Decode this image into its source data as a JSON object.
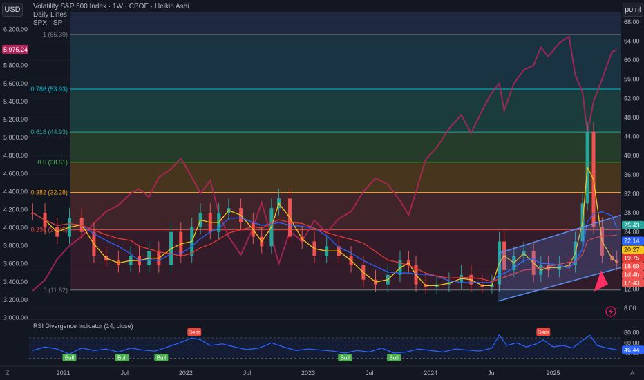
{
  "toolbar": {
    "currency_label": "USD",
    "scale_label": "point"
  },
  "header": {
    "title": "Volatility S&P 500 Index · 1W · CBOE · Heikin Ashi",
    "indicator_1": "Daily Lines",
    "indicator_2": "SPX · SP"
  },
  "colors": {
    "background": "#131722",
    "spx_line": "#b4265c",
    "bull_candle": "#26a69a",
    "bear_candle": "#ef5350",
    "ma_fast": "#f5c518",
    "ma_mid": "#2962ff",
    "ma_slow": "#e53935",
    "rsi_line": "#2962ff",
    "channel": "#5b8def",
    "fib_top": "#2a2e39",
    "fib_1": "#1c4e5a",
    "fib_2": "#1f5b52",
    "fib_3": "#2c5a31",
    "fib_4": "#6b4a1a",
    "fib_5": "#5a2e2e",
    "fib_6": "#4a2130"
  },
  "chart_data": [
    {
      "type": "line",
      "name": "main",
      "x_ticks": [
        "2021",
        "Jul",
        "2022",
        "Jul",
        "2023",
        "Jul",
        "2024",
        "Jul",
        "2025"
      ],
      "left_axis": {
        "ticks": [
          "6,200.00",
          "6,000.00",
          "5,800.00",
          "5,600.00",
          "5,400.00",
          "5,200.00",
          "5,000.00",
          "4,800.00",
          "4,600.00",
          "4,400.00",
          "4,200.00",
          "4,000.00",
          "3,800.00",
          "3,600.00",
          "3,400.00",
          "3,200.00",
          "3,000.00"
        ],
        "current_label": "5,975.24",
        "range": [
          3000,
          6250
        ]
      },
      "right_axis": {
        "ticks": [
          "68.00",
          "64.00",
          "60.00",
          "56.00",
          "52.00",
          "48.00",
          "44.00",
          "40.00",
          "36.00",
          "32.00",
          "28.00",
          "24.00",
          "20.00",
          "16.00",
          "12.00",
          "8.00"
        ],
        "range": [
          6,
          70
        ]
      },
      "price_badges": [
        {
          "label": "25.43",
          "value": 25.43,
          "color": "#26a69a"
        },
        {
          "label": "22.14",
          "value": 22.14,
          "color": "#2962ff"
        },
        {
          "label": "20.27",
          "value": 20.27,
          "color": "#f5c518"
        },
        {
          "label": "19.75",
          "value": 19.75,
          "color": "#e53935"
        },
        {
          "label": "18.69",
          "value": 18.69,
          "color": "#ef5350"
        },
        {
          "label": "1d 4h",
          "value": 17.9,
          "color": "#ef5350"
        },
        {
          "label": "17.43",
          "value": 17.43,
          "color": "#ef5350"
        }
      ],
      "fib_levels": [
        {
          "label": "1 (65.39)",
          "value": 65.39,
          "color": "#787b86"
        },
        {
          "label": "0.786 (53.93)",
          "value": 53.93,
          "color": "#00bcd4"
        },
        {
          "label": "0.618 (44.93)",
          "value": 44.93,
          "color": "#26a69a"
        },
        {
          "label": "0.5 (38.61)",
          "value": 38.61,
          "color": "#4caf50"
        },
        {
          "label": "0.382 (32.28)",
          "value": 32.28,
          "color": "#ff9800"
        },
        {
          "label": "0.236 (24.45)",
          "value": 24.45,
          "color": "#f44336"
        },
        {
          "label": "0 (11.82)",
          "value": 11.82,
          "color": "#787b86"
        }
      ],
      "spx_series": [
        [
          2020.75,
          3300
        ],
        [
          2020.85,
          3420
        ],
        [
          2020.95,
          3650
        ],
        [
          2021.05,
          3800
        ],
        [
          2021.15,
          3900
        ],
        [
          2021.25,
          4050
        ],
        [
          2021.35,
          4180
        ],
        [
          2021.45,
          4250
        ],
        [
          2021.55,
          4380
        ],
        [
          2021.62,
          4430
        ],
        [
          2021.7,
          4340
        ],
        [
          2021.78,
          4560
        ],
        [
          2021.88,
          4650
        ],
        [
          2021.96,
          4770
        ],
        [
          2022.05,
          4560
        ],
        [
          2022.12,
          4380
        ],
        [
          2022.2,
          4520
        ],
        [
          2022.27,
          4160
        ],
        [
          2022.35,
          3900
        ],
        [
          2022.45,
          3700
        ],
        [
          2022.55,
          4000
        ],
        [
          2022.62,
          4280
        ],
        [
          2022.7,
          3900
        ],
        [
          2022.76,
          3600
        ],
        [
          2022.85,
          3960
        ],
        [
          2022.95,
          3850
        ],
        [
          2023.05,
          4080
        ],
        [
          2023.15,
          3950
        ],
        [
          2023.25,
          4100
        ],
        [
          2023.35,
          4180
        ],
        [
          2023.45,
          4400
        ],
        [
          2023.55,
          4550
        ],
        [
          2023.65,
          4480
        ],
        [
          2023.75,
          4300
        ],
        [
          2023.82,
          4140
        ],
        [
          2023.88,
          4400
        ],
        [
          2023.96,
          4760
        ],
        [
          2024.05,
          4890
        ],
        [
          2024.15,
          5100
        ],
        [
          2024.25,
          5250
        ],
        [
          2024.33,
          5050
        ],
        [
          2024.42,
          5300
        ],
        [
          2024.5,
          5500
        ],
        [
          2024.56,
          5600
        ],
        [
          2024.6,
          5300
        ],
        [
          2024.68,
          5600
        ],
        [
          2024.76,
          5750
        ],
        [
          2024.84,
          5800
        ],
        [
          2024.9,
          6000
        ],
        [
          2024.96,
          5900
        ],
        [
          2025.05,
          6050
        ],
        [
          2025.13,
          6120
        ],
        [
          2025.18,
          5700
        ],
        [
          2025.24,
          5500
        ],
        [
          2025.28,
          5050
        ],
        [
          2025.33,
          5400
        ],
        [
          2025.4,
          5650
        ],
        [
          2025.48,
          5950
        ],
        [
          2025.52,
          5975
        ]
      ],
      "vix_candles_close": [
        [
          2020.75,
          28
        ],
        [
          2020.85,
          25
        ],
        [
          2020.95,
          23
        ],
        [
          2021.05,
          27
        ],
        [
          2021.15,
          24
        ],
        [
          2021.25,
          19
        ],
        [
          2021.35,
          18
        ],
        [
          2021.45,
          17
        ],
        [
          2021.55,
          19
        ],
        [
          2021.62,
          17
        ],
        [
          2021.7,
          20
        ],
        [
          2021.78,
          17
        ],
        [
          2021.88,
          24
        ],
        [
          2021.96,
          19
        ],
        [
          2022.05,
          25
        ],
        [
          2022.12,
          28
        ],
        [
          2022.2,
          24
        ],
        [
          2022.27,
          28
        ],
        [
          2022.35,
          29
        ],
        [
          2022.45,
          26
        ],
        [
          2022.55,
          23
        ],
        [
          2022.62,
          21
        ],
        [
          2022.7,
          29
        ],
        [
          2022.76,
          31
        ],
        [
          2022.85,
          23
        ],
        [
          2022.95,
          22
        ],
        [
          2023.05,
          19
        ],
        [
          2023.15,
          21
        ],
        [
          2023.25,
          19
        ],
        [
          2023.35,
          17
        ],
        [
          2023.45,
          14
        ],
        [
          2023.55,
          13
        ],
        [
          2023.65,
          15
        ],
        [
          2023.75,
          18
        ],
        [
          2023.82,
          17
        ],
        [
          2023.88,
          13
        ],
        [
          2023.96,
          12.5
        ],
        [
          2024.05,
          13
        ],
        [
          2024.15,
          13.5
        ],
        [
          2024.25,
          15
        ],
        [
          2024.33,
          13
        ],
        [
          2024.42,
          12.5
        ],
        [
          2024.5,
          13
        ],
        [
          2024.56,
          22
        ],
        [
          2024.6,
          16
        ],
        [
          2024.68,
          19
        ],
        [
          2024.76,
          20
        ],
        [
          2024.84,
          15
        ],
        [
          2024.9,
          17
        ],
        [
          2024.96,
          16
        ],
        [
          2025.05,
          17
        ],
        [
          2025.13,
          17
        ],
        [
          2025.18,
          22
        ],
        [
          2025.24,
          30
        ],
        [
          2025.28,
          45
        ],
        [
          2025.33,
          25
        ],
        [
          2025.4,
          19
        ],
        [
          2025.48,
          18
        ],
        [
          2025.52,
          17.43
        ]
      ],
      "channel": {
        "lower": [
          [
            2024.55,
            9.5
          ],
          [
            2025.55,
            16.5
          ]
        ],
        "upper": [
          [
            2024.55,
            19.5
          ],
          [
            2025.55,
            27.5
          ]
        ]
      },
      "time_range": [
        2020.72,
        2025.55
      ]
    },
    {
      "type": "line",
      "name": "rsi",
      "title": "RSI Divergence Indicator (14, close)",
      "y_ticks": [
        "80.00",
        "60.00",
        "40.00"
      ],
      "current_label": "46.44",
      "range": [
        25,
        85
      ],
      "signals": [
        {
          "label": "Bull",
          "x": 2021.05,
          "kind": "bull"
        },
        {
          "label": "Bull",
          "x": 2021.48,
          "kind": "bull"
        },
        {
          "label": "Bull",
          "x": 2021.8,
          "kind": "bull"
        },
        {
          "label": "Bear",
          "x": 2022.07,
          "kind": "bear"
        },
        {
          "label": "Bull",
          "x": 2023.3,
          "kind": "bull"
        },
        {
          "label": "Bull",
          "x": 2023.7,
          "kind": "bull"
        },
        {
          "label": "Bear",
          "x": 2024.92,
          "kind": "bear"
        }
      ],
      "series": [
        [
          2020.75,
          45
        ],
        [
          2020.85,
          52
        ],
        [
          2020.95,
          48
        ],
        [
          2021.05,
          38
        ],
        [
          2021.15,
          50
        ],
        [
          2021.25,
          45
        ],
        [
          2021.35,
          48
        ],
        [
          2021.45,
          42
        ],
        [
          2021.55,
          50
        ],
        [
          2021.65,
          46
        ],
        [
          2021.75,
          44
        ],
        [
          2021.85,
          52
        ],
        [
          2021.95,
          60
        ],
        [
          2022.05,
          70
        ],
        [
          2022.12,
          66
        ],
        [
          2022.2,
          55
        ],
        [
          2022.3,
          58
        ],
        [
          2022.4,
          52
        ],
        [
          2022.5,
          47
        ],
        [
          2022.6,
          50
        ],
        [
          2022.7,
          60
        ],
        [
          2022.8,
          52
        ],
        [
          2022.9,
          45
        ],
        [
          2023.0,
          48
        ],
        [
          2023.1,
          46
        ],
        [
          2023.2,
          44
        ],
        [
          2023.3,
          40
        ],
        [
          2023.4,
          45
        ],
        [
          2023.5,
          42
        ],
        [
          2023.6,
          50
        ],
        [
          2023.7,
          40
        ],
        [
          2023.8,
          42
        ],
        [
          2023.9,
          48
        ],
        [
          2024.0,
          45
        ],
        [
          2024.1,
          42
        ],
        [
          2024.2,
          48
        ],
        [
          2024.3,
          46
        ],
        [
          2024.4,
          44
        ],
        [
          2024.5,
          50
        ],
        [
          2024.56,
          76
        ],
        [
          2024.62,
          55
        ],
        [
          2024.7,
          60
        ],
        [
          2024.78,
          52
        ],
        [
          2024.86,
          58
        ],
        [
          2024.92,
          66
        ],
        [
          2025.0,
          52
        ],
        [
          2025.08,
          55
        ],
        [
          2025.16,
          50
        ],
        [
          2025.24,
          65
        ],
        [
          2025.3,
          75
        ],
        [
          2025.36,
          55
        ],
        [
          2025.44,
          50
        ],
        [
          2025.52,
          46.44
        ]
      ]
    }
  ]
}
